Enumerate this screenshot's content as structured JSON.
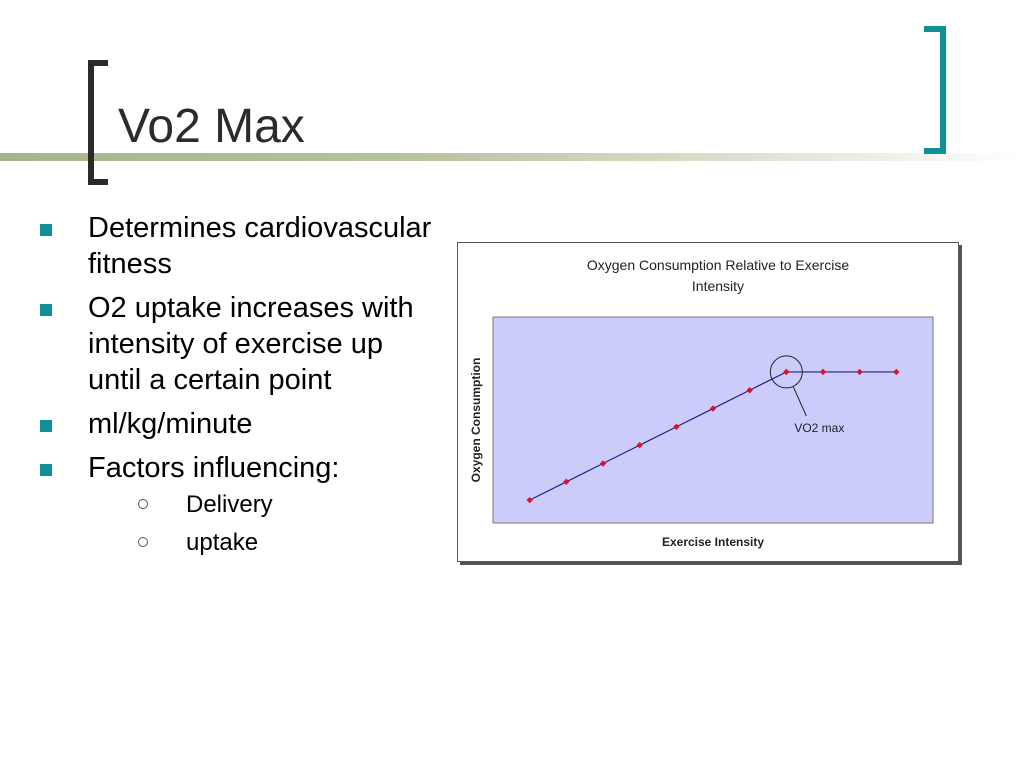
{
  "slide": {
    "title": "Vo2 Max",
    "bullets": [
      {
        "text": "Determines cardiovascular fitness"
      },
      {
        "text": "O2 uptake increases with intensity of exercise up until a certain point"
      },
      {
        "text": "ml/kg/minute"
      },
      {
        "text": "Factors influencing:"
      }
    ],
    "sub_bullets": [
      {
        "text": "Delivery"
      },
      {
        "text": "uptake"
      }
    ],
    "colors": {
      "accent": "#0f8f96",
      "title_text": "#2b2b2b",
      "title_bar": "#a6b48c"
    }
  },
  "chart_data": {
    "type": "line",
    "title": "Oxygen Consumption Relative to Exercise Intensity",
    "xlabel": "Exercise Intensity",
    "ylabel": "Oxygen Consumption",
    "x": [
      1,
      2,
      3,
      4,
      5,
      6,
      7,
      8,
      9,
      10,
      11
    ],
    "series": [
      {
        "values": [
          1.0,
          1.8,
          2.6,
          3.4,
          4.2,
          5.0,
          5.8,
          6.6,
          6.6,
          6.6,
          6.6
        ]
      }
    ],
    "xlim": [
      0,
      12
    ],
    "ylim": [
      0,
      9
    ],
    "annotation": {
      "label": "VO2 max",
      "x": 8,
      "y": 6.6
    },
    "grid": false,
    "plot_background": "#ccccfa",
    "line_color": "#1f1f8f",
    "marker_color": "#e0102a"
  }
}
